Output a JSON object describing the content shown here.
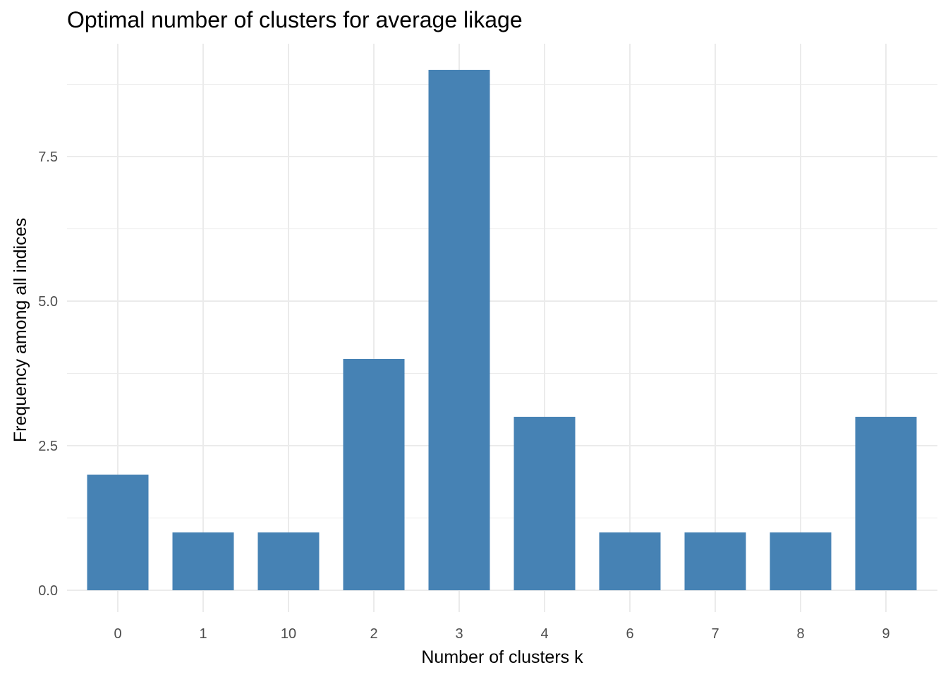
{
  "chart_data": {
    "type": "bar",
    "title": "Optimal number of clusters for average likage",
    "xlabel": "Number of clusters k",
    "ylabel": "Frequency among all indices",
    "categories": [
      "0",
      "1",
      "10",
      "2",
      "3",
      "4",
      "6",
      "7",
      "8",
      "9"
    ],
    "values": [
      2,
      1,
      1,
      4,
      9,
      3,
      1,
      1,
      1,
      3
    ],
    "ylim": [
      0,
      9
    ],
    "yticks": [
      0,
      2.5,
      5,
      7.5
    ],
    "ytick_labels": [
      "0.0",
      "2.5",
      "5.0",
      "7.5"
    ],
    "grid": true,
    "bar_color": "#4682b4",
    "grid_color": "#ebebeb"
  }
}
